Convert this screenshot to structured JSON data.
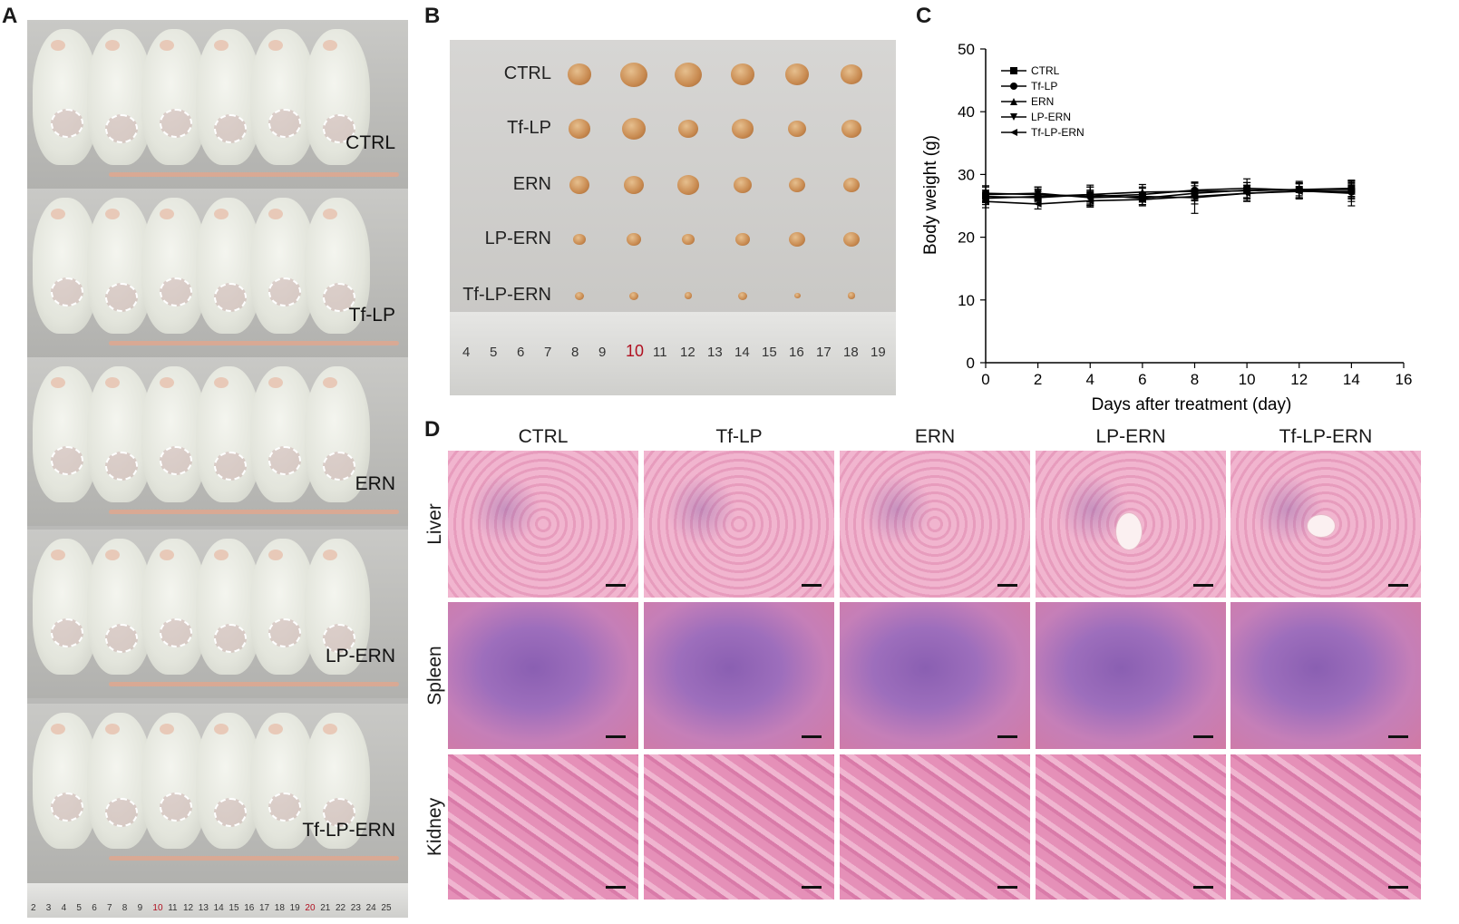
{
  "panels": {
    "a": "A",
    "b": "B",
    "c": "C",
    "d": "D"
  },
  "panelA": {
    "groups": [
      "CTRL",
      "Tf-LP",
      "ERN",
      "LP-ERN",
      "Tf-LP-ERN"
    ],
    "ruler_ticks": [
      "2",
      "3",
      "4",
      "5",
      "6",
      "7",
      "8",
      "9",
      "10",
      "11",
      "12",
      "13",
      "14",
      "15",
      "16",
      "17",
      "18",
      "19",
      "20",
      "21",
      "22",
      "23",
      "24",
      "25"
    ]
  },
  "panelB": {
    "groups": [
      "CTRL",
      "Tf-LP",
      "ERN",
      "LP-ERN",
      "Tf-LP-ERN"
    ],
    "ruler_ticks": [
      "4",
      "5",
      "6",
      "7",
      "8",
      "9",
      "10",
      "11",
      "12",
      "13",
      "14",
      "15",
      "16",
      "17",
      "18",
      "19"
    ]
  },
  "chart_data": {
    "type": "line",
    "xlabel": "Days after treatment (day)",
    "ylabel": "Body weight (g)",
    "xlim": [
      0,
      16
    ],
    "ylim": [
      0,
      50
    ],
    "xticks": [
      0,
      2,
      4,
      6,
      8,
      10,
      12,
      14,
      16
    ],
    "yticks": [
      0,
      10,
      20,
      30,
      40,
      50
    ],
    "legend_position": "top-left",
    "grid": false,
    "x": [
      0,
      2,
      4,
      6,
      8,
      10,
      12,
      14
    ],
    "series": [
      {
        "name": "CTRL",
        "marker": "square",
        "values": [
          26.5,
          26.3,
          26.8,
          26.2,
          27.0,
          27.5,
          27.6,
          27.8
        ],
        "errors": [
          1.0,
          1.0,
          1.2,
          1.0,
          1.2,
          1.2,
          1.0,
          1.3
        ]
      },
      {
        "name": "Tf-LP",
        "marker": "circle",
        "values": [
          27.0,
          26.8,
          26.5,
          26.8,
          27.5,
          27.8,
          27.5,
          27.2
        ],
        "errors": [
          1.2,
          1.2,
          1.5,
          1.2,
          1.2,
          1.5,
          1.2,
          1.5
        ]
      },
      {
        "name": "ERN",
        "marker": "triangle-up",
        "values": [
          26.2,
          26.5,
          26.8,
          27.2,
          27.3,
          27.4,
          27.6,
          27.6
        ],
        "errors": [
          1.0,
          1.2,
          1.5,
          1.2,
          1.3,
          1.3,
          1.3,
          1.3
        ]
      },
      {
        "name": "LP-ERN",
        "marker": "triangle-down",
        "values": [
          26.8,
          27.0,
          26.3,
          26.5,
          26.3,
          27.0,
          27.4,
          27.0
        ],
        "errors": [
          1.2,
          1.0,
          1.2,
          1.3,
          2.5,
          1.3,
          1.2,
          2.0
        ]
      },
      {
        "name": "Tf-LP-ERN",
        "marker": "triangle-left",
        "values": [
          25.7,
          25.3,
          25.8,
          26.0,
          26.5,
          27.0,
          27.3,
          27.3
        ],
        "errors": [
          1.0,
          0.8,
          1.0,
          1.0,
          1.2,
          1.2,
          1.2,
          1.2
        ]
      }
    ]
  },
  "panelD": {
    "columns": [
      "CTRL",
      "Tf-LP",
      "ERN",
      "LP-ERN",
      "Tf-LP-ERN"
    ],
    "rows": [
      "Liver",
      "Spleen",
      "Kidney"
    ]
  }
}
